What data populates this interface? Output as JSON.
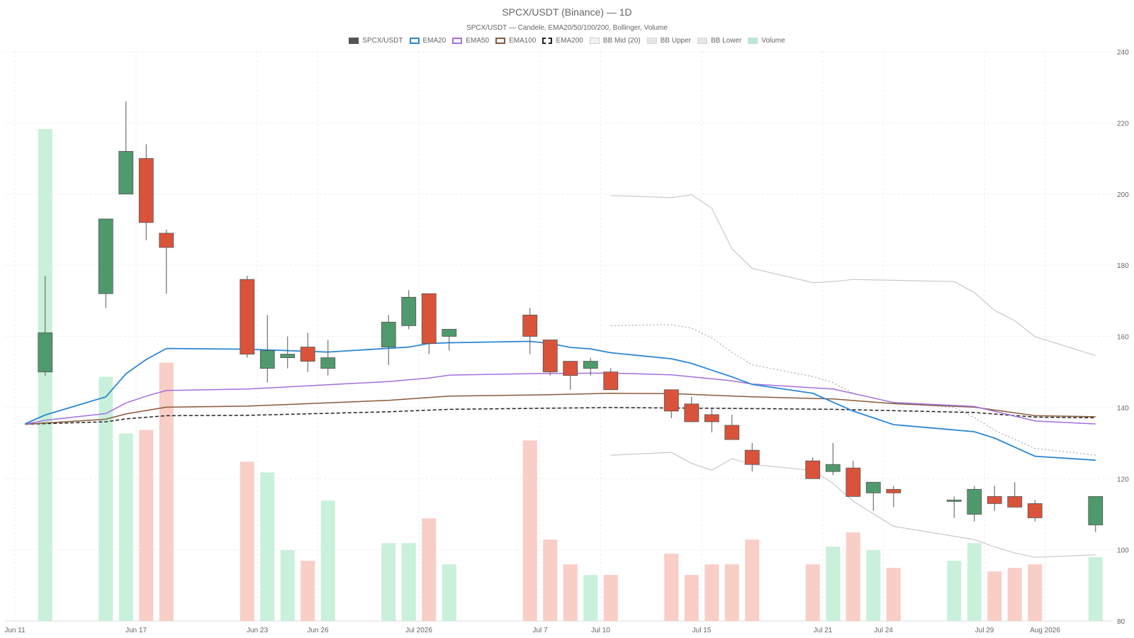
{
  "chart_data": {
    "type": "candlestick",
    "title": "SPCX/USDT (Binance) — 1D",
    "subtitle": "SPCX/USDT — Candele, EMA20/50/100/200, Bollinger, Volume",
    "x_tick_labels": [
      "Jun 11",
      "Jun 17",
      "Jun 23",
      "Jun 26",
      "Jul 2026",
      "Jul 7",
      "Jul 10",
      "Jul 15",
      "Jul 21",
      "Jul 24",
      "Jul 29",
      "Aug 2026"
    ],
    "x_tick_dates": [
      "2026-06-11",
      "2026-06-17",
      "2026-06-23",
      "2026-06-26",
      "2026-07-01",
      "2026-07-07",
      "2026-07-10",
      "2026-07-15",
      "2026-07-21",
      "2026-07-24",
      "2026-07-29",
      "2026-08-01"
    ],
    "x_range": [
      "2026-06-11",
      "2026-08-01"
    ],
    "y_range": [
      80,
      240
    ],
    "y_ticks": [
      80,
      100,
      120,
      140,
      160,
      180,
      200,
      220,
      240
    ],
    "y_axis_side": "right",
    "grid": true,
    "legend_position": "top-center",
    "legend": [
      {
        "label": "SPCX/USDT",
        "kind": "candle",
        "color": "#555555"
      },
      {
        "label": "EMA20",
        "kind": "line",
        "color": "#2b86d6"
      },
      {
        "label": "EMA50",
        "kind": "line",
        "color": "#a36fdf"
      },
      {
        "label": "EMA100",
        "kind": "line",
        "color": "#8a5a3b"
      },
      {
        "label": "EMA200",
        "kind": "dashed",
        "color": "#222222"
      },
      {
        "label": "BB Mid (20)",
        "kind": "dotted",
        "color": "#aaaaaa"
      },
      {
        "label": "BB Upper",
        "kind": "fill",
        "color": "#cccccc"
      },
      {
        "label": "BB Lower",
        "kind": "fill",
        "color": "#cccccc"
      },
      {
        "label": "Volume",
        "kind": "fill",
        "color": "#b4ecd0"
      }
    ],
    "colors": {
      "up": "#4f9a6c",
      "down": "#d9533b",
      "vol_up": "#c9f0da",
      "vol_down": "#f8cec6",
      "ema20": "#2b86d6",
      "ema50": "#a36fdf",
      "ema100": "#8a5a3b",
      "ema200": "#222222",
      "bb_mid": "#aaaaaa",
      "bb_band": "#c8c8c8",
      "grid": "#eeeeee"
    },
    "candles": [
      {
        "date": "2026-06-12",
        "open": 150,
        "high": 177,
        "low": 149,
        "close": 161
      },
      {
        "date": "2026-06-15",
        "open": 172,
        "high": 193,
        "low": 168,
        "close": 193
      },
      {
        "date": "2026-06-16",
        "open": 200,
        "high": 226,
        "low": 200,
        "close": 212
      },
      {
        "date": "2026-06-17",
        "open": 210,
        "high": 214,
        "low": 187,
        "close": 192
      },
      {
        "date": "2026-06-18",
        "open": 189,
        "high": 190,
        "low": 172,
        "close": 185
      },
      {
        "date": "2026-06-22",
        "open": 176,
        "high": 177,
        "low": 154,
        "close": 155
      },
      {
        "date": "2026-06-23",
        "open": 151,
        "high": 166,
        "low": 147,
        "close": 156
      },
      {
        "date": "2026-06-24",
        "open": 154,
        "high": 160,
        "low": 151,
        "close": 155
      },
      {
        "date": "2026-06-25",
        "open": 157,
        "high": 161,
        "low": 150,
        "close": 153
      },
      {
        "date": "2026-06-26",
        "open": 151,
        "high": 159,
        "low": 149,
        "close": 154
      },
      {
        "date": "2026-06-29",
        "open": 157,
        "high": 166,
        "low": 152,
        "close": 164
      },
      {
        "date": "2026-06-30",
        "open": 163,
        "high": 173,
        "low": 162,
        "close": 171
      },
      {
        "date": "2026-07-01",
        "open": 172,
        "high": 172,
        "low": 155,
        "close": 158
      },
      {
        "date": "2026-07-02",
        "open": 160,
        "high": 162,
        "low": 156,
        "close": 162
      },
      {
        "date": "2026-07-06",
        "open": 166,
        "high": 168,
        "low": 155,
        "close": 160
      },
      {
        "date": "2026-07-07",
        "open": 159,
        "high": 159,
        "low": 149,
        "close": 150
      },
      {
        "date": "2026-07-08",
        "open": 153,
        "high": 153,
        "low": 145,
        "close": 149
      },
      {
        "date": "2026-07-09",
        "open": 151,
        "high": 154,
        "low": 149,
        "close": 153
      },
      {
        "date": "2026-07-10",
        "open": 150,
        "high": 151,
        "low": 145,
        "close": 145
      },
      {
        "date": "2026-07-13",
        "open": 145,
        "high": 145,
        "low": 137,
        "close": 139
      },
      {
        "date": "2026-07-14",
        "open": 141,
        "high": 143,
        "low": 136,
        "close": 136
      },
      {
        "date": "2026-07-15",
        "open": 138,
        "high": 140,
        "low": 133,
        "close": 136
      },
      {
        "date": "2026-07-16",
        "open": 135,
        "high": 138,
        "low": 131,
        "close": 131
      },
      {
        "date": "2026-07-17",
        "open": 128,
        "high": 130,
        "low": 122,
        "close": 124
      },
      {
        "date": "2026-07-20",
        "open": 125,
        "high": 126,
        "low": 120,
        "close": 120
      },
      {
        "date": "2026-07-21",
        "open": 122,
        "high": 130,
        "low": 121,
        "close": 124
      },
      {
        "date": "2026-07-22",
        "open": 123,
        "high": 125,
        "low": 115,
        "close": 115
      },
      {
        "date": "2026-07-23",
        "open": 116,
        "high": 119,
        "low": 111,
        "close": 119
      },
      {
        "date": "2026-07-24",
        "open": 117,
        "high": 118,
        "low": 112,
        "close": 116
      },
      {
        "date": "2026-07-27",
        "open": 114,
        "high": 115,
        "low": 109,
        "close": 114
      },
      {
        "date": "2026-07-28",
        "open": 110,
        "high": 118,
        "low": 108,
        "close": 117
      },
      {
        "date": "2026-07-29",
        "open": 115,
        "high": 118,
        "low": 111,
        "close": 113
      },
      {
        "date": "2026-07-30",
        "open": 115,
        "high": 119,
        "low": 112,
        "close": 112
      },
      {
        "date": "2026-07-31",
        "open": 113,
        "high": 114,
        "low": 108,
        "close": 109
      },
      {
        "date": "2026-08-03",
        "open": 107,
        "high": 115,
        "low": 105,
        "close": 115
      }
    ],
    "volume": [
      219,
      149,
      133,
      134,
      153,
      125,
      122,
      100,
      97,
      114,
      102,
      102,
      109,
      96,
      131,
      103,
      96,
      93,
      93,
      99,
      93,
      96,
      96,
      103,
      96,
      101,
      105,
      100,
      95,
      97,
      102,
      94,
      95,
      96,
      98
    ],
    "ema20": [
      {
        "date": "2026-06-11",
        "value": 135.4
      },
      {
        "date": "2026-06-12",
        "value": 137.9
      },
      {
        "date": "2026-06-15",
        "value": 143
      },
      {
        "date": "2026-06-16",
        "value": 149.5
      },
      {
        "date": "2026-06-17",
        "value": 153.5
      },
      {
        "date": "2026-06-18",
        "value": 156.6
      },
      {
        "date": "2026-06-22",
        "value": 156.4
      },
      {
        "date": "2026-06-26",
        "value": 155.6
      },
      {
        "date": "2026-06-30",
        "value": 157
      },
      {
        "date": "2026-07-01",
        "value": 158
      },
      {
        "date": "2026-07-02",
        "value": 158.2
      },
      {
        "date": "2026-07-06",
        "value": 158.6
      },
      {
        "date": "2026-07-07",
        "value": 158
      },
      {
        "date": "2026-07-08",
        "value": 156.9
      },
      {
        "date": "2026-07-09",
        "value": 156.5
      },
      {
        "date": "2026-07-10",
        "value": 155.4
      },
      {
        "date": "2026-07-13",
        "value": 153.7
      },
      {
        "date": "2026-07-14",
        "value": 152.4
      },
      {
        "date": "2026-07-15",
        "value": 150.5
      },
      {
        "date": "2026-07-16",
        "value": 148.6
      },
      {
        "date": "2026-07-17",
        "value": 146.5
      },
      {
        "date": "2026-07-20",
        "value": 144
      },
      {
        "date": "2026-07-22",
        "value": 139
      },
      {
        "date": "2026-07-24",
        "value": 135.2
      },
      {
        "date": "2026-07-28",
        "value": 133.2
      },
      {
        "date": "2026-07-29",
        "value": 131.4
      },
      {
        "date": "2026-07-31",
        "value": 126.3
      },
      {
        "date": "2026-08-03",
        "value": 125.2
      }
    ],
    "ema50": [
      {
        "date": "2026-06-11",
        "value": 135.3
      },
      {
        "date": "2026-06-12",
        "value": 136.4
      },
      {
        "date": "2026-06-15",
        "value": 138.3
      },
      {
        "date": "2026-06-16",
        "value": 141.3
      },
      {
        "date": "2026-06-17",
        "value": 143.2
      },
      {
        "date": "2026-06-18",
        "value": 144.8
      },
      {
        "date": "2026-06-22",
        "value": 145.2
      },
      {
        "date": "2026-06-29",
        "value": 147.3
      },
      {
        "date": "2026-07-01",
        "value": 148.3
      },
      {
        "date": "2026-07-02",
        "value": 149.1
      },
      {
        "date": "2026-07-07",
        "value": 149.6
      },
      {
        "date": "2026-07-10",
        "value": 149.7
      },
      {
        "date": "2026-07-13",
        "value": 149.2
      },
      {
        "date": "2026-07-16",
        "value": 147.5
      },
      {
        "date": "2026-07-17",
        "value": 146.6
      },
      {
        "date": "2026-07-21",
        "value": 145.2
      },
      {
        "date": "2026-07-24",
        "value": 141.4
      },
      {
        "date": "2026-07-28",
        "value": 140.3
      },
      {
        "date": "2026-07-31",
        "value": 136.2
      },
      {
        "date": "2026-08-03",
        "value": 135.4
      }
    ],
    "ema100": [
      {
        "date": "2026-06-11",
        "value": 135.3
      },
      {
        "date": "2026-06-15",
        "value": 136.7
      },
      {
        "date": "2026-06-16",
        "value": 138.2
      },
      {
        "date": "2026-06-18",
        "value": 140.1
      },
      {
        "date": "2026-06-22",
        "value": 140.4
      },
      {
        "date": "2026-06-29",
        "value": 142
      },
      {
        "date": "2026-07-01",
        "value": 142.8
      },
      {
        "date": "2026-07-02",
        "value": 143.2
      },
      {
        "date": "2026-07-07",
        "value": 143.6
      },
      {
        "date": "2026-07-10",
        "value": 144
      },
      {
        "date": "2026-07-13",
        "value": 143.9
      },
      {
        "date": "2026-07-17",
        "value": 143
      },
      {
        "date": "2026-07-21",
        "value": 142.4
      },
      {
        "date": "2026-07-24",
        "value": 141.1
      },
      {
        "date": "2026-07-28",
        "value": 140.1
      },
      {
        "date": "2026-07-31",
        "value": 137.7
      },
      {
        "date": "2026-08-03",
        "value": 137.4
      }
    ],
    "ema200": [
      {
        "date": "2026-06-11",
        "value": 135.3
      },
      {
        "date": "2026-06-15",
        "value": 136
      },
      {
        "date": "2026-06-16",
        "value": 136.8
      },
      {
        "date": "2026-06-18",
        "value": 137.7
      },
      {
        "date": "2026-06-22",
        "value": 137.8
      },
      {
        "date": "2026-06-29",
        "value": 138.8
      },
      {
        "date": "2026-07-02",
        "value": 139.5
      },
      {
        "date": "2026-07-10",
        "value": 140
      },
      {
        "date": "2026-07-17",
        "value": 139.7
      },
      {
        "date": "2026-07-21",
        "value": 139.5
      },
      {
        "date": "2026-07-28",
        "value": 138.6
      },
      {
        "date": "2026-07-31",
        "value": 137.3
      },
      {
        "date": "2026-08-03",
        "value": 137.1
      }
    ],
    "bb_upper": [
      {
        "date": "2026-07-10",
        "value": 199.6
      },
      {
        "date": "2026-07-13",
        "value": 199
      },
      {
        "date": "2026-07-14",
        "value": 199.8
      },
      {
        "date": "2026-07-15",
        "value": 196
      },
      {
        "date": "2026-07-16",
        "value": 184.6
      },
      {
        "date": "2026-07-17",
        "value": 179.1
      },
      {
        "date": "2026-07-20",
        "value": 175.1
      },
      {
        "date": "2026-07-21",
        "value": 175.4
      },
      {
        "date": "2026-07-22",
        "value": 176
      },
      {
        "date": "2026-07-27",
        "value": 175.4
      },
      {
        "date": "2026-07-28",
        "value": 172.3
      },
      {
        "date": "2026-07-29",
        "value": 167.3
      },
      {
        "date": "2026-07-30",
        "value": 164.4
      },
      {
        "date": "2026-07-31",
        "value": 159.9
      },
      {
        "date": "2026-08-03",
        "value": 154.6
      }
    ],
    "bb_mid": [
      {
        "date": "2026-07-10",
        "value": 163
      },
      {
        "date": "2026-07-13",
        "value": 163.3
      },
      {
        "date": "2026-07-14",
        "value": 162.3
      },
      {
        "date": "2026-07-15",
        "value": 159.6
      },
      {
        "date": "2026-07-16",
        "value": 155.5
      },
      {
        "date": "2026-07-17",
        "value": 152
      },
      {
        "date": "2026-07-20",
        "value": 148.7
      },
      {
        "date": "2026-07-21",
        "value": 147
      },
      {
        "date": "2026-07-22",
        "value": 144
      },
      {
        "date": "2026-07-24",
        "value": 141.3
      },
      {
        "date": "2026-07-27",
        "value": 140
      },
      {
        "date": "2026-07-28",
        "value": 137.2
      },
      {
        "date": "2026-07-29",
        "value": 133.6
      },
      {
        "date": "2026-07-31",
        "value": 128.5
      },
      {
        "date": "2026-08-03",
        "value": 126.6
      }
    ],
    "bb_lower": [
      {
        "date": "2026-07-10",
        "value": 126.6
      },
      {
        "date": "2026-07-13",
        "value": 127.4
      },
      {
        "date": "2026-07-14",
        "value": 124.3
      },
      {
        "date": "2026-07-15",
        "value": 122.4
      },
      {
        "date": "2026-07-16",
        "value": 125.6
      },
      {
        "date": "2026-07-17",
        "value": 124
      },
      {
        "date": "2026-07-20",
        "value": 122.3
      },
      {
        "date": "2026-07-21",
        "value": 118.7
      },
      {
        "date": "2026-07-22",
        "value": 113.7
      },
      {
        "date": "2026-07-24",
        "value": 106.6
      },
      {
        "date": "2026-07-28",
        "value": 102.9
      },
      {
        "date": "2026-07-29",
        "value": 100.8
      },
      {
        "date": "2026-07-30",
        "value": 99.1
      },
      {
        "date": "2026-07-31",
        "value": 97.9
      },
      {
        "date": "2026-08-03",
        "value": 98.6
      }
    ]
  }
}
